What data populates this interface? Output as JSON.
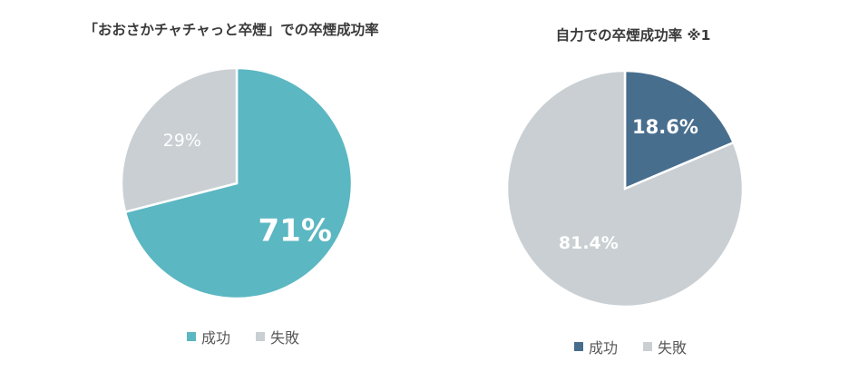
{
  "chart_data": [
    {
      "type": "pie",
      "title": "「おおさかチャチャっと卒煙」での卒煙成功率",
      "categories": [
        "成功",
        "失敗"
      ],
      "values": [
        71,
        29
      ],
      "labels": [
        "71%",
        "29%"
      ],
      "colors": [
        "#5bb7c2",
        "#c9cfd2"
      ],
      "label_colors": [
        "#ffffff",
        "#ffffff"
      ],
      "legend": "bottom"
    },
    {
      "type": "pie",
      "title": "自力での卒煙成功率 ※1",
      "categories": [
        "成功",
        "失敗"
      ],
      "values": [
        18.6,
        81.4
      ],
      "labels": [
        "18.6%",
        "81.4%"
      ],
      "colors": [
        "#486e8e",
        "#c9cfd2"
      ],
      "label_colors": [
        "#ffffff",
        "#ffffff"
      ],
      "legend": "bottom"
    }
  ]
}
